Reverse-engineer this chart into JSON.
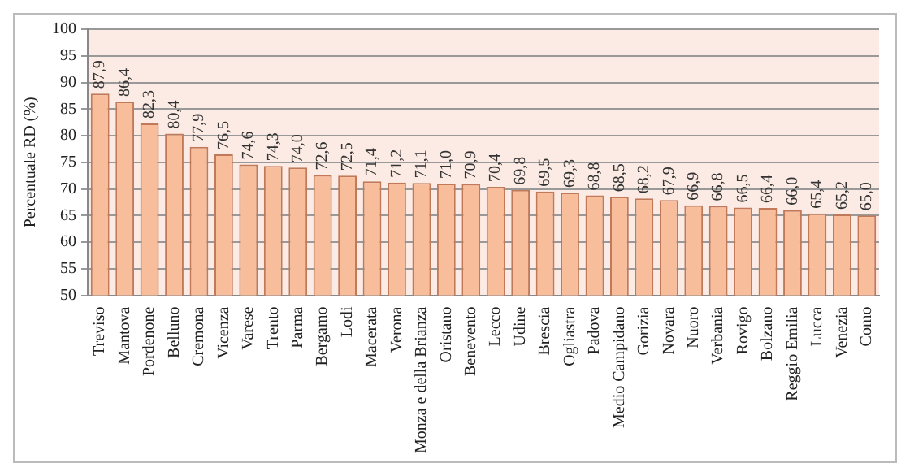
{
  "chart_data": {
    "type": "bar",
    "ylabel": "Percentuale RD (%)",
    "categories": [
      "Treviso",
      "Mantova",
      "Pordenone",
      "Belluno",
      "Cremona",
      "Vicenza",
      "Varese",
      "Trento",
      "Parma",
      "Bergamo",
      "Lodi",
      "Macerata",
      "Verona",
      "Monza e della Brianza",
      "Oristano",
      "Benevento",
      "Lecco",
      "Udine",
      "Brescia",
      "Ogliastra",
      "Padova",
      "Medio Campidano",
      "Gorizia",
      "Novara",
      "Nuoro",
      "Verbania",
      "Rovigo",
      "Bolzano",
      "Reggio Emilia",
      "Lucca",
      "Venezia",
      "Como"
    ],
    "values": [
      87.9,
      86.4,
      82.3,
      80.4,
      77.9,
      76.5,
      74.6,
      74.3,
      74.0,
      72.6,
      72.5,
      71.4,
      71.2,
      71.1,
      71.0,
      70.9,
      70.4,
      69.8,
      69.5,
      69.3,
      68.8,
      68.5,
      68.2,
      67.9,
      66.9,
      66.8,
      66.5,
      66.4,
      66.0,
      65.4,
      65.2,
      65.0
    ],
    "color": "#f8bd9b",
    "value_labels": [
      "87,9",
      "86,4",
      "82,3",
      "80,4",
      "77,9",
      "76,5",
      "74,6",
      "74,3",
      "74,0",
      "72,6",
      "72,5",
      "71,4",
      "71,2",
      "71,1",
      "71,0",
      "70,9",
      "70,4",
      "69,8",
      "69,5",
      "69,3",
      "68,8",
      "68,5",
      "68,2",
      "67,9",
      "66,9",
      "66,8",
      "66,5",
      "66,4",
      "66,0",
      "65,4",
      "65,2",
      "65,0"
    ],
    "ylim": [
      50,
      100
    ],
    "yticks": [
      50,
      55,
      60,
      65,
      70,
      75,
      80,
      85,
      90,
      95,
      100
    ],
    "grid": "y",
    "legend": false
  }
}
